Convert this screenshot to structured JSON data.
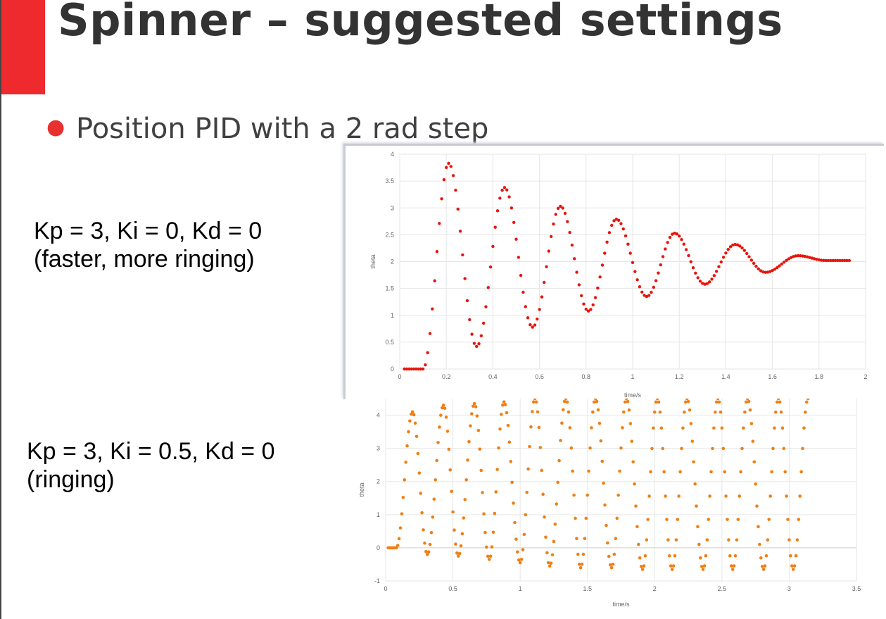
{
  "slide": {
    "title": "Spinner – suggested settings",
    "accent_color": "#ee2a2f",
    "bullet_color": "#e8302f",
    "bullet": "Position PID with a 2 rad step"
  },
  "captions": [
    {
      "line1": "Kp = 3, Ki = 0, Kd = 0",
      "line2": "(faster, more ringing)"
    },
    {
      "line1": "Kp = 3, Ki = 0.5, Kd = 0",
      "line2": "(ringing)"
    }
  ],
  "chart_data": [
    {
      "type": "scatter",
      "title": "",
      "xlabel": "time/s",
      "ylabel": "theta",
      "xlim": [
        0,
        2
      ],
      "ylim": [
        0,
        4
      ],
      "xticks": [
        0,
        0.2,
        0.4,
        0.6,
        0.8,
        1,
        1.2,
        1.4,
        1.6,
        1.8,
        2
      ],
      "yticks": [
        0,
        0.5,
        1,
        1.5,
        2,
        2.5,
        3,
        3.5,
        4
      ],
      "tick_labels_x": [
        "0",
        "0.2",
        "0.4",
        "0.6",
        "0.8",
        "1",
        "1.2",
        "1.4",
        "1.6",
        "1.8",
        "2"
      ],
      "tick_labels_y": [
        "0",
        "0.5",
        "1",
        "1.5",
        "2",
        "2.5",
        "3",
        "3.5",
        "4"
      ],
      "grid": true,
      "color": "#e8140c",
      "series_shape": {
        "step_start": 0.1,
        "t_end": 1.93,
        "flat_end": 1.0,
        "extrema": [
          [
            0.21,
            3.83
          ],
          [
            0.33,
            0.42
          ],
          [
            0.45,
            3.38
          ],
          [
            0.57,
            0.78
          ],
          [
            0.69,
            3.03
          ],
          [
            0.81,
            1.08
          ],
          [
            0.93,
            2.79
          ],
          [
            1.06,
            1.35
          ],
          [
            1.18,
            2.53
          ],
          [
            1.31,
            1.58
          ],
          [
            1.44,
            2.32
          ],
          [
            1.57,
            1.8
          ],
          [
            1.71,
            2.11
          ],
          [
            1.83,
            2.02
          ],
          [
            1.93,
            2.02
          ]
        ]
      }
    },
    {
      "type": "scatter",
      "title": "",
      "xlabel": "time/s",
      "ylabel": "theta",
      "xlim": [
        0,
        3.5
      ],
      "ylim": [
        -1,
        4.5
      ],
      "xticks": [
        0,
        0.5,
        1,
        1.5,
        2,
        2.5,
        3,
        3.5
      ],
      "yticks": [
        -1,
        0,
        1,
        2,
        3,
        4
      ],
      "tick_labels_x": [
        "0",
        "0.5",
        "1",
        "1.5",
        "2",
        "2.5",
        "3",
        "3.5"
      ],
      "tick_labels_y": [
        "-1",
        "0",
        "1",
        "2",
        "3",
        "4"
      ],
      "grid": true,
      "color": "#f07f15",
      "series_shape": {
        "step_start": 0.08,
        "t_end": 3.14,
        "flat_end": 0.0,
        "extrema": [
          [
            0.2,
            4.1
          ],
          [
            0.31,
            -0.2
          ],
          [
            0.43,
            4.3
          ],
          [
            0.54,
            -0.25
          ],
          [
            0.66,
            4.35
          ],
          [
            0.77,
            -0.35
          ],
          [
            0.88,
            4.4
          ],
          [
            1.0,
            -0.45
          ],
          [
            1.11,
            4.5
          ],
          [
            1.22,
            -0.55
          ],
          [
            1.34,
            4.5
          ],
          [
            1.45,
            -0.6
          ],
          [
            1.56,
            4.5
          ],
          [
            1.68,
            -0.6
          ],
          [
            1.79,
            4.5
          ],
          [
            1.91,
            -0.65
          ],
          [
            2.02,
            4.5
          ],
          [
            2.13,
            -0.65
          ],
          [
            2.24,
            4.5
          ],
          [
            2.36,
            -0.65
          ],
          [
            2.47,
            4.5
          ],
          [
            2.58,
            -0.65
          ],
          [
            2.69,
            4.5
          ],
          [
            2.81,
            -0.65
          ],
          [
            2.92,
            4.5
          ],
          [
            3.03,
            -0.65
          ],
          [
            3.14,
            4.5
          ]
        ]
      }
    }
  ]
}
